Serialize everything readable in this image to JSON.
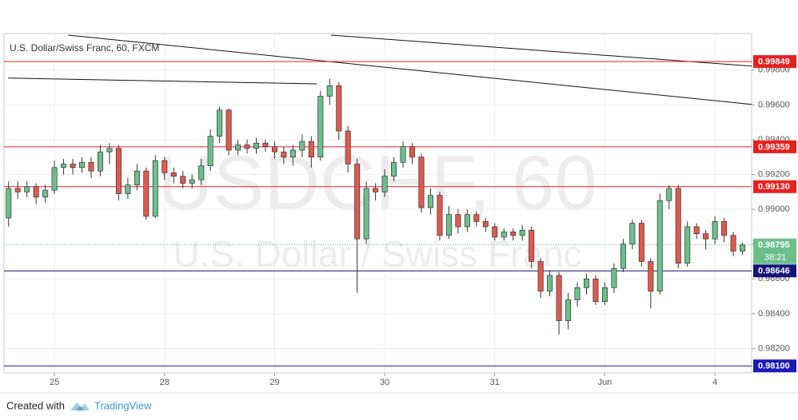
{
  "chart_data": {
    "type": "candlestick",
    "title": "U.S. Dollar/Swiss Franc, 60, FXCM",
    "watermark": "USDCHF, 60",
    "watermark_subtitle": "U.S. Dollar / Swiss Franc",
    "x": [
      1,
      3,
      5,
      7,
      9,
      11,
      13,
      15,
      17,
      19,
      21,
      23,
      25,
      27,
      29,
      31,
      33,
      35,
      37,
      39,
      41,
      43,
      45,
      47,
      49,
      51,
      53,
      55,
      57,
      59,
      61,
      63,
      65,
      67,
      69,
      71,
      73,
      75,
      77,
      79,
      81,
      83,
      85,
      87,
      89,
      91,
      93,
      95,
      97,
      99,
      101,
      103,
      105,
      107,
      109,
      111,
      113,
      115,
      117,
      119,
      121,
      123,
      125,
      127,
      129,
      131,
      133,
      135,
      137,
      139,
      141,
      143,
      145,
      147,
      149,
      151,
      153,
      155,
      157,
      159,
      161
    ],
    "open": [
      0.9895,
      0.9912,
      0.991,
      0.9913,
      0.9907,
      0.9911,
      0.9924,
      0.9926,
      0.9924,
      0.9927,
      0.9922,
      0.9933,
      0.9935,
      0.9909,
      0.9914,
      0.9922,
      0.9896,
      0.9928,
      0.9921,
      0.9919,
      0.9915,
      0.9917,
      0.9925,
      0.9942,
      0.9957,
      0.9934,
      0.9937,
      0.9935,
      0.9938,
      0.9936,
      0.9933,
      0.993,
      0.9934,
      0.9939,
      0.993,
      0.9965,
      0.9971,
      0.9945,
      0.9926,
      0.9883,
      0.9912,
      0.991,
      0.9919,
      0.9927,
      0.9936,
      0.993,
      0.9901,
      0.9908,
      0.9885,
      0.9897,
      0.989,
      0.9897,
      0.9893,
      0.989,
      0.9884,
      0.9887,
      0.9885,
      0.9888,
      0.987,
      0.9853,
      0.9862,
      0.9836,
      0.9848,
      0.9855,
      0.986,
      0.9847,
      0.9855,
      0.9866,
      0.988,
      0.9892,
      0.987,
      0.9853,
      0.9905,
      0.9912,
      0.9869,
      0.989,
      0.9886,
      0.9883,
      0.9893,
      0.9885,
      0.9876
    ],
    "high": [
      0.9916,
      0.9916,
      0.9916,
      0.9915,
      0.9914,
      0.9928,
      0.9929,
      0.9929,
      0.993,
      0.993,
      0.9937,
      0.9938,
      0.9937,
      0.9918,
      0.9926,
      0.9924,
      0.9931,
      0.993,
      0.9924,
      0.9922,
      0.992,
      0.9929,
      0.9946,
      0.9959,
      0.9958,
      0.994,
      0.994,
      0.9941,
      0.994,
      0.9939,
      0.9936,
      0.9937,
      0.9943,
      0.9942,
      0.9968,
      0.9975,
      0.9973,
      0.9948,
      0.9929,
      0.9916,
      0.9915,
      0.9923,
      0.993,
      0.9939,
      0.9938,
      0.9932,
      0.9912,
      0.991,
      0.9902,
      0.99,
      0.99,
      0.9899,
      0.9895,
      0.9892,
      0.9889,
      0.9889,
      0.9891,
      0.989,
      0.9872,
      0.9865,
      0.9864,
      0.9852,
      0.9858,
      0.9863,
      0.9862,
      0.9858,
      0.9869,
      0.9883,
      0.9894,
      0.9894,
      0.9872,
      0.9909,
      0.9914,
      0.9914,
      0.9893,
      0.9892,
      0.9888,
      0.9896,
      0.9895,
      0.9887,
      0.9881
    ],
    "low": [
      0.989,
      0.9906,
      0.9907,
      0.9903,
      0.9904,
      0.9909,
      0.992,
      0.992,
      0.9921,
      0.9918,
      0.9919,
      0.9926,
      0.9905,
      0.9906,
      0.9911,
      0.9894,
      0.9895,
      0.9917,
      0.9915,
      0.9912,
      0.9912,
      0.9914,
      0.9922,
      0.9938,
      0.9931,
      0.9931,
      0.9932,
      0.9932,
      0.9933,
      0.9929,
      0.9926,
      0.9925,
      0.993,
      0.9924,
      0.9928,
      0.996,
      0.994,
      0.9921,
      0.9852,
      0.988,
      0.9905,
      0.9907,
      0.9916,
      0.9924,
      0.9926,
      0.9898,
      0.9897,
      0.9882,
      0.9883,
      0.9886,
      0.9887,
      0.989,
      0.9887,
      0.9882,
      0.9882,
      0.9882,
      0.9882,
      0.9866,
      0.9849,
      0.985,
      0.9828,
      0.9831,
      0.9844,
      0.9851,
      0.9845,
      0.9845,
      0.9852,
      0.9864,
      0.9877,
      0.9867,
      0.9843,
      0.9851,
      0.99,
      0.9866,
      0.9867,
      0.9883,
      0.9877,
      0.988,
      0.9881,
      0.9873,
      0.9874
    ],
    "close": [
      0.9912,
      0.991,
      0.9913,
      0.9907,
      0.9911,
      0.9924,
      0.9926,
      0.9924,
      0.9927,
      0.9922,
      0.9933,
      0.9935,
      0.9909,
      0.9914,
      0.9922,
      0.9896,
      0.9928,
      0.9921,
      0.9919,
      0.9915,
      0.9917,
      0.9925,
      0.9942,
      0.9957,
      0.9934,
      0.9937,
      0.9935,
      0.9938,
      0.9936,
      0.9933,
      0.993,
      0.9934,
      0.9939,
      0.993,
      0.9965,
      0.9971,
      0.9945,
      0.9926,
      0.9883,
      0.9912,
      0.991,
      0.9919,
      0.9927,
      0.9936,
      0.993,
      0.9901,
      0.9908,
      0.9885,
      0.9897,
      0.989,
      0.9897,
      0.9893,
      0.989,
      0.9884,
      0.9887,
      0.9885,
      0.9888,
      0.987,
      0.9853,
      0.9862,
      0.9836,
      0.9848,
      0.9855,
      0.986,
      0.9847,
      0.9855,
      0.9866,
      0.988,
      0.9892,
      0.987,
      0.9853,
      0.9905,
      0.9912,
      0.9869,
      0.989,
      0.9886,
      0.9883,
      0.9893,
      0.9885,
      0.9876,
      0.98795
    ],
    "up_color": "#6cbf8c",
    "down_color": "#e0594d",
    "xlim": [
      0,
      163
    ],
    "xticks": [
      {
        "value": 11,
        "label": "25"
      },
      {
        "value": 35,
        "label": "28"
      },
      {
        "value": 59,
        "label": "29"
      },
      {
        "value": 83,
        "label": "30"
      },
      {
        "value": 107,
        "label": "31"
      },
      {
        "value": 131,
        "label": "Jun"
      },
      {
        "value": 155,
        "label": "4"
      }
    ],
    "ylim": [
      0.9806,
      1.0001
    ],
    "yticks": [
      {
        "value": 0.982,
        "label": "0.98200"
      },
      {
        "value": 0.984,
        "label": "0.98400"
      },
      {
        "value": 0.986,
        "label": "0.98600"
      },
      {
        "value": 0.988,
        "label": "0.98800"
      },
      {
        "value": 0.99,
        "label": "0.99000"
      },
      {
        "value": 0.992,
        "label": "0.99200"
      },
      {
        "value": 0.994,
        "label": "0.99400"
      },
      {
        "value": 0.996,
        "label": "0.99600"
      },
      {
        "value": 0.998,
        "label": "0.99800"
      }
    ],
    "grid": true,
    "levels": [
      {
        "value": 0.99849,
        "label": "0.99849",
        "color": "#e8201f"
      },
      {
        "value": 0.99359,
        "label": "0.99359",
        "color": "#e8201f"
      },
      {
        "value": 0.9913,
        "label": "0.99130",
        "color": "#e8201f"
      },
      {
        "value": 0.98646,
        "label": "0.98646",
        "color": "#12137a"
      },
      {
        "value": 0.981,
        "label": "0.98100",
        "color": "#1a1ab8"
      }
    ],
    "trendlines": [
      {
        "x": [
          14,
          163
        ],
        "y": [
          1.00001,
          0.99603
        ]
      },
      {
        "x": [
          71.3,
          163
        ],
        "y": [
          1.00001,
          0.99823
        ]
      },
      {
        "x": [
          0.9,
          68.2
        ],
        "y": [
          0.99754,
          0.99721
        ]
      }
    ],
    "last_price": {
      "value": 0.98795,
      "label": "0.98795",
      "countdown": "38:21",
      "color": "#6cbf8c"
    }
  },
  "footer": {
    "text": "Created with",
    "brand": "TradingView"
  }
}
